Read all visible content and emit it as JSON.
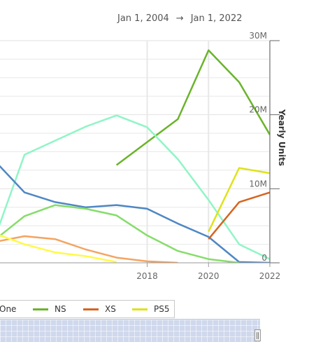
{
  "date_range": {
    "from": "Jan 1, 2004",
    "arrow": "→",
    "to": "Jan 1, 2022"
  },
  "colors": {
    "XOne": "#86dd6a",
    "NS": "#6ab42b",
    "XS": "#d56520",
    "PS5": "#dfe21a",
    "PS4": "#90f5c6",
    "3DS": "#4e87c4",
    "Wii U": "#f4a461",
    "Vita": "#fffa48",
    "grid": "#e8e8e8",
    "axis": "#666666"
  },
  "legend": [
    {
      "label": "One",
      "color_key": "XOne"
    },
    {
      "label": "NS",
      "color_key": "NS"
    },
    {
      "label": "XS",
      "color_key": "XS"
    },
    {
      "label": "PS5",
      "color_key": "PS5"
    }
  ],
  "chart_data": {
    "type": "line",
    "x_domain": [
      2013.2,
      2022
    ],
    "ylim": [
      0,
      30000000
    ],
    "y_ticks": [
      {
        "value": 0,
        "label": "0"
      },
      {
        "value": 10000000,
        "label": "10M"
      },
      {
        "value": 20000000,
        "label": "20M"
      },
      {
        "value": 30000000,
        "label": "30M"
      }
    ],
    "x_ticks": [
      {
        "value": 2018,
        "label": "2018"
      },
      {
        "value": 2020,
        "label": "2020"
      },
      {
        "value": 2022,
        "label": "2022"
      }
    ],
    "ylabel": "Yearly Units",
    "grid": true,
    "series": [
      {
        "name": "NS",
        "color_key": "NS",
        "points": [
          [
            2017,
            13200000
          ],
          [
            2018,
            16300000
          ],
          [
            2019,
            19400000
          ],
          [
            2020,
            28700000
          ],
          [
            2021,
            24400000
          ],
          [
            2022,
            17300000
          ]
        ]
      },
      {
        "color_key": "PS4",
        "points": [
          [
            2013,
            3000000
          ],
          [
            2014,
            14600000
          ],
          [
            2015,
            16500000
          ],
          [
            2016,
            18400000
          ],
          [
            2017,
            19900000
          ],
          [
            2018,
            18300000
          ],
          [
            2019,
            14000000
          ],
          [
            2020,
            8500000
          ],
          [
            2021,
            2500000
          ],
          [
            2022,
            500000
          ]
        ]
      },
      {
        "color_key": "3DS",
        "points": [
          [
            2013,
            13900000
          ],
          [
            2014,
            9500000
          ],
          [
            2015,
            8200000
          ],
          [
            2016,
            7500000
          ],
          [
            2017,
            7800000
          ],
          [
            2018,
            7300000
          ],
          [
            2019,
            5300000
          ],
          [
            2020,
            3500000
          ],
          [
            2021,
            100000
          ],
          [
            2022,
            0
          ]
        ]
      },
      {
        "color_key": "XOne",
        "points": [
          [
            2013,
            3000000
          ],
          [
            2014,
            6300000
          ],
          [
            2015,
            7800000
          ],
          [
            2016,
            7300000
          ],
          [
            2017,
            6400000
          ],
          [
            2018,
            3700000
          ],
          [
            2019,
            1600000
          ],
          [
            2020,
            500000
          ],
          [
            2021,
            0
          ]
        ]
      },
      {
        "color_key": "Wii U",
        "points": [
          [
            2013,
            2800000
          ],
          [
            2014,
            3600000
          ],
          [
            2015,
            3200000
          ],
          [
            2016,
            1800000
          ],
          [
            2017,
            700000
          ],
          [
            2018,
            200000
          ],
          [
            2019,
            0
          ]
        ]
      },
      {
        "color_key": "Vita",
        "points": [
          [
            2013,
            4000000
          ],
          [
            2014,
            2500000
          ],
          [
            2015,
            1400000
          ],
          [
            2016,
            900000
          ],
          [
            2017,
            100000
          ]
        ]
      },
      {
        "color_key": "PS3",
        "points": [
          [
            2013,
            5200000
          ],
          [
            2014,
            2500000
          ],
          [
            2015,
            900000
          ],
          [
            2016,
            300000
          ],
          [
            2017,
            0
          ]
        ]
      },
      {
        "name": "XS",
        "color_key": "XS",
        "points": [
          [
            2020,
            3200000
          ],
          [
            2021,
            8200000
          ],
          [
            2022,
            9500000
          ]
        ]
      },
      {
        "name": "PS5",
        "color_key": "PS5",
        "points": [
          [
            2020,
            4200000
          ],
          [
            2021,
            12800000
          ],
          [
            2022,
            12100000
          ]
        ]
      }
    ]
  }
}
